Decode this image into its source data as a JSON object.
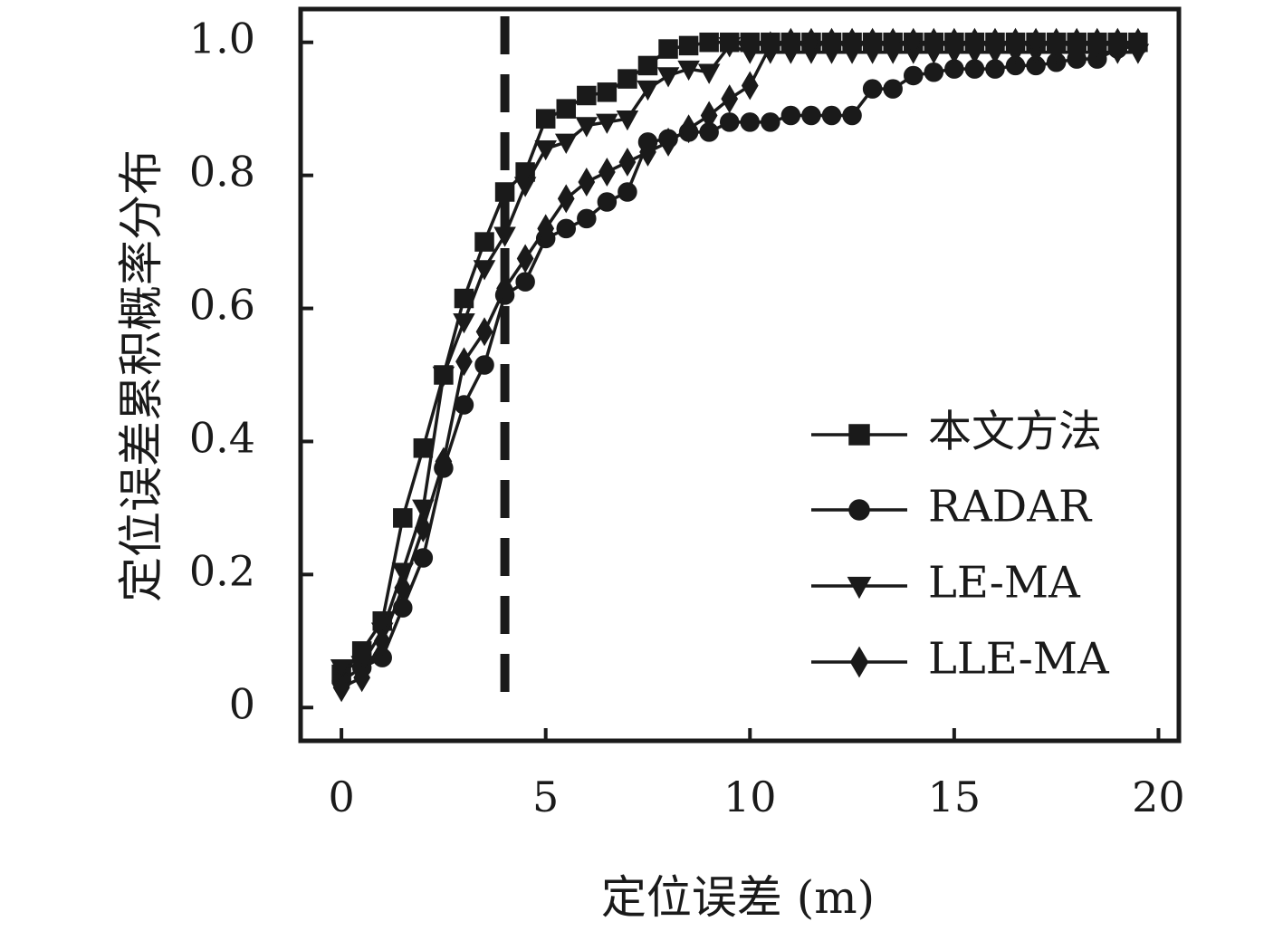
{
  "chart_data": {
    "type": "line",
    "title": "",
    "xlabel": "定位误差 (m)",
    "ylabel": "定位误差累积概率分布",
    "xlim": [
      -1,
      20.5
    ],
    "ylim": [
      -0.05,
      1.05
    ],
    "x_ticks": [
      0,
      5,
      10,
      15,
      20
    ],
    "x_tick_labels": [
      "0",
      "5",
      "10",
      "15",
      "20"
    ],
    "y_ticks": [
      0,
      0.2,
      0.4,
      0.6,
      0.8,
      1.0
    ],
    "y_tick_labels": [
      "0",
      "0.2",
      "0.4",
      "0.6",
      "0.8",
      "1.0"
    ],
    "reference_line": {
      "x": 4,
      "style": "dashed"
    },
    "grid": false,
    "legend_position": "bottom-right",
    "color": "#1a1a1a",
    "series": [
      {
        "name": "本文方法",
        "marker": "square",
        "x": [
          0,
          0.5,
          1,
          1.5,
          2,
          2.5,
          3,
          3.5,
          4,
          4.5,
          5,
          5.5,
          6,
          6.5,
          7,
          7.5,
          8,
          8.5,
          9,
          9.5,
          10,
          10.5,
          11,
          11.5,
          12,
          12.5,
          13,
          13.5,
          14,
          14.5,
          15,
          15.5,
          16,
          16.5,
          17,
          17.5,
          18,
          18.5,
          19,
          19.5
        ],
        "y": [
          0.05,
          0.085,
          0.13,
          0.285,
          0.39,
          0.5,
          0.615,
          0.7,
          0.775,
          0.805,
          0.885,
          0.9,
          0.92,
          0.925,
          0.945,
          0.965,
          0.99,
          0.995,
          1.0,
          1.0,
          1.0,
          1.0,
          1.0,
          1.0,
          1.0,
          1.0,
          1.0,
          1.0,
          1.0,
          1.0,
          1.0,
          1.0,
          1.0,
          1.0,
          1.0,
          1.0,
          1.0,
          1.0,
          1.0,
          1.0
        ]
      },
      {
        "name": "RADAR",
        "marker": "circle",
        "x": [
          0,
          0.5,
          1,
          1.5,
          2,
          2.5,
          3,
          3.5,
          4,
          4.5,
          5,
          5.5,
          6,
          6.5,
          7,
          7.5,
          8,
          8.5,
          9,
          9.5,
          10,
          10.5,
          11,
          11.5,
          12,
          12.5,
          13,
          13.5,
          14,
          14.5,
          15,
          15.5,
          16,
          16.5,
          17,
          17.5,
          18,
          18.5,
          19,
          19.5
        ],
        "y": [
          0.04,
          0.06,
          0.075,
          0.15,
          0.225,
          0.36,
          0.455,
          0.515,
          0.62,
          0.64,
          0.705,
          0.72,
          0.735,
          0.76,
          0.775,
          0.85,
          0.855,
          0.865,
          0.865,
          0.88,
          0.88,
          0.88,
          0.89,
          0.89,
          0.89,
          0.89,
          0.93,
          0.93,
          0.95,
          0.955,
          0.96,
          0.96,
          0.96,
          0.965,
          0.965,
          0.97,
          0.975,
          0.975,
          0.99,
          0.995
        ]
      },
      {
        "name": "LE-MA",
        "marker": "triangle-down",
        "x": [
          0,
          0.5,
          1,
          1.5,
          2,
          2.5,
          3,
          3.5,
          4,
          4.5,
          5,
          5.5,
          6,
          6.5,
          7,
          7.5,
          8,
          8.5,
          9,
          9.5,
          10,
          10.5,
          11,
          11.5,
          12,
          12.5,
          13,
          13.5,
          14,
          14.5,
          15,
          15.5,
          16,
          16.5,
          17,
          17.5,
          18,
          18.5,
          19,
          19.5
        ],
        "y": [
          0.06,
          0.065,
          0.115,
          0.205,
          0.3,
          0.5,
          0.58,
          0.66,
          0.71,
          0.785,
          0.84,
          0.85,
          0.875,
          0.88,
          0.885,
          0.93,
          0.95,
          0.96,
          0.955,
          0.995,
          0.985,
          0.985,
          0.985,
          0.985,
          0.985,
          0.985,
          0.985,
          0.985,
          0.985,
          0.985,
          0.985,
          0.985,
          0.985,
          0.985,
          0.985,
          0.985,
          0.985,
          0.985,
          0.985,
          0.985
        ]
      },
      {
        "name": "LLE-MA",
        "marker": "diamond",
        "x": [
          0,
          0.5,
          1,
          1.5,
          2,
          2.5,
          3,
          3.5,
          4,
          4.5,
          5,
          5.5,
          6,
          6.5,
          7,
          7.5,
          8,
          8.5,
          9,
          9.5,
          10,
          10.5,
          11,
          11.5,
          12,
          12.5,
          13,
          13.5,
          14,
          14.5,
          15,
          15.5,
          16,
          16.5,
          17,
          17.5,
          18,
          18.5,
          19,
          19.5
        ],
        "y": [
          0.03,
          0.045,
          0.1,
          0.18,
          0.27,
          0.37,
          0.52,
          0.565,
          0.63,
          0.675,
          0.72,
          0.765,
          0.79,
          0.805,
          0.82,
          0.835,
          0.85,
          0.87,
          0.89,
          0.915,
          0.935,
          0.995,
          1.0,
          1.0,
          1.0,
          1.0,
          1.0,
          1.0,
          1.0,
          1.0,
          1.0,
          1.0,
          1.0,
          1.0,
          1.0,
          1.0,
          1.0,
          1.0,
          1.0,
          1.0
        ]
      }
    ]
  }
}
